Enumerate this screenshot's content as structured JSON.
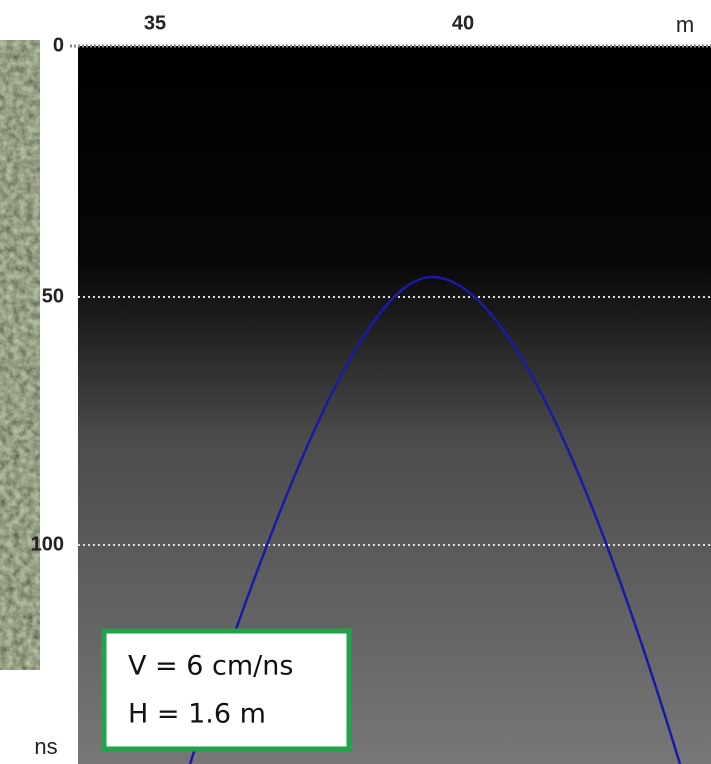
{
  "x_axis": {
    "ticks": [
      35,
      40
    ],
    "unit": "m"
  },
  "y_axis": {
    "ticks": [
      0,
      50,
      100
    ],
    "unit": "ns"
  },
  "annotation": {
    "lines": [
      "V = 6 cm/ns",
      "H = 1.6 m"
    ]
  }
}
